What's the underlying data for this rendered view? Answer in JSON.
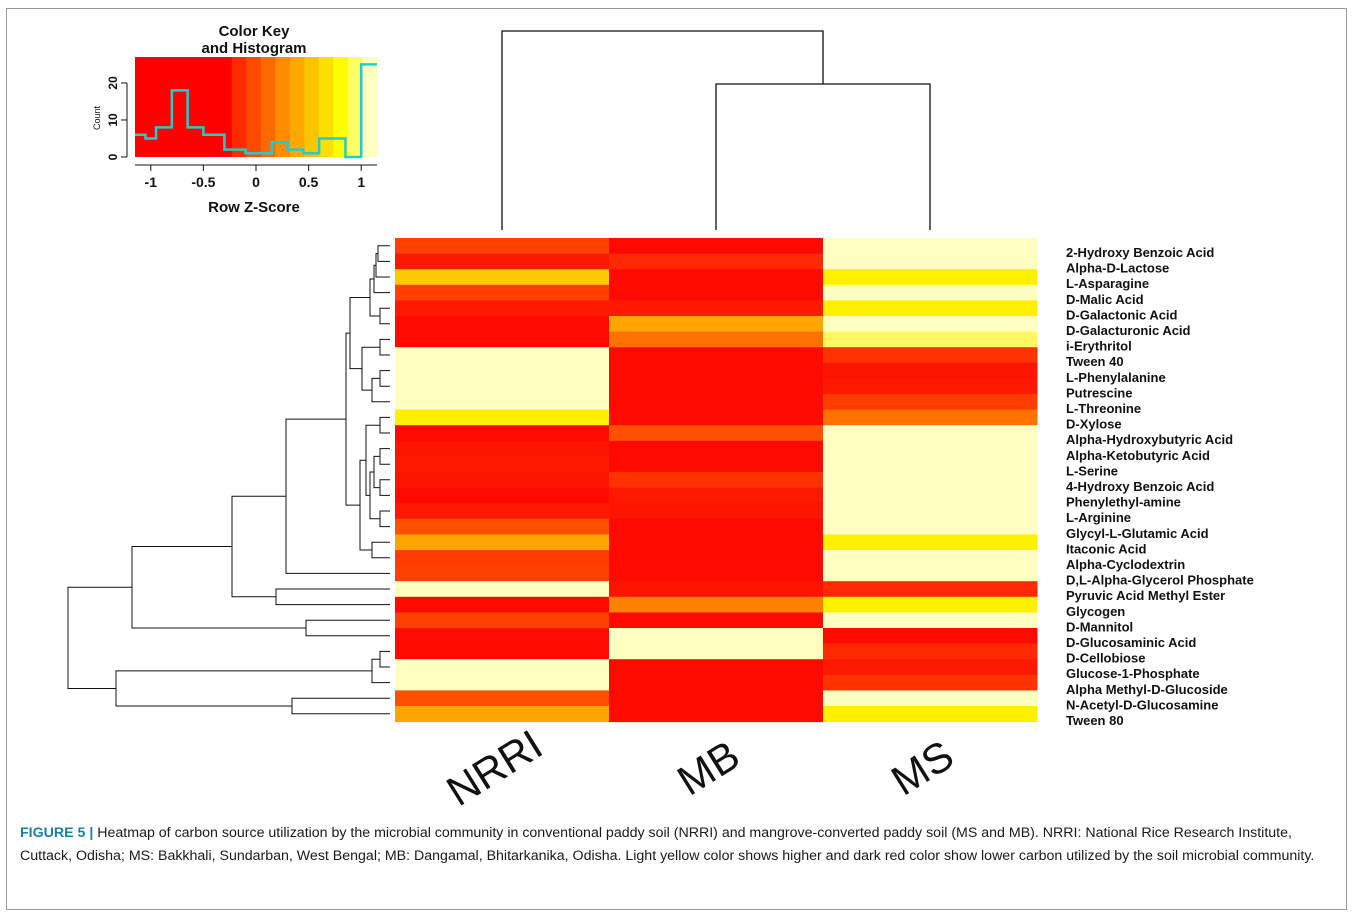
{
  "chart_data": {
    "type": "heatmap",
    "columns": [
      "NRRI",
      "MB",
      "MS"
    ],
    "rows": [
      "2-Hydroxy Benzoic Acid",
      "Alpha-D-Lactose",
      "L-Asparagine",
      "D-Malic Acid",
      "D-Galactonic Acid",
      "D-Galacturonic Acid",
      "i-Erythritol",
      "Tween 40",
      "L-Phenylalanine",
      "Putrescine",
      "L-Threonine",
      "D-Xylose",
      "Alpha-Hydroxybutyric Acid",
      "Alpha-Ketobutyric Acid",
      "L-Serine",
      "4-Hydroxy Benzoic Acid",
      "Phenylethyl-amine",
      "L-Arginine",
      "Glycyl-L-Glutamic Acid",
      "Itaconic Acid",
      "Alpha-Cyclodextrin",
      "D,L-Alpha-Glycerol Phosphate",
      "Pyruvic Acid Methyl Ester",
      "Glycogen",
      "D-Mannitol",
      "D-Glucosaminic Acid",
      "D-Cellobiose",
      "Glucose-1-Phosphate",
      "Alpha Methyl-D-Glucoside",
      "N-Acetyl-D-Glucosamine",
      "Tween 80"
    ],
    "values": [
      [
        -0.45,
        -1.0,
        1.0
      ],
      [
        -0.85,
        -0.7,
        1.0
      ],
      [
        0.4,
        -1.0,
        0.6
      ],
      [
        -0.45,
        -1.0,
        1.0
      ],
      [
        -0.85,
        -0.85,
        0.6
      ],
      [
        -1.0,
        0.2,
        1.0
      ],
      [
        -1.0,
        -0.1,
        0.8
      ],
      [
        1.0,
        -1.0,
        -0.6
      ],
      [
        1.0,
        -1.0,
        -0.9
      ],
      [
        1.0,
        -1.0,
        -0.85
      ],
      [
        1.0,
        -1.0,
        -0.5
      ],
      [
        0.6,
        -1.0,
        -0.1
      ],
      [
        -1.0,
        -0.3,
        1.0
      ],
      [
        -0.9,
        -1.0,
        1.0
      ],
      [
        -0.85,
        -1.0,
        1.0
      ],
      [
        -0.9,
        -0.6,
        1.0
      ],
      [
        -1.0,
        -0.85,
        1.0
      ],
      [
        -0.85,
        -0.9,
        1.0
      ],
      [
        -0.3,
        -1.0,
        1.0
      ],
      [
        0.2,
        -1.0,
        0.6
      ],
      [
        -0.5,
        -1.0,
        1.0
      ],
      [
        -0.45,
        -1.0,
        1.0
      ],
      [
        1.0,
        -0.9,
        -0.7
      ],
      [
        -1.0,
        0.0,
        0.6
      ],
      [
        -0.45,
        -1.0,
        1.0
      ],
      [
        -1.0,
        1.0,
        -1.0
      ],
      [
        -1.0,
        1.0,
        -0.7
      ],
      [
        1.0,
        -1.0,
        -0.85
      ],
      [
        1.0,
        -1.0,
        -0.6
      ],
      [
        -0.3,
        -1.0,
        1.0
      ],
      [
        0.2,
        -1.0,
        0.6
      ]
    ],
    "color_key": {
      "title_line1": "Color Key",
      "title_line2": "and Histogram",
      "xlabel": "Row Z-Score",
      "ylabel": "Count",
      "xticks": [
        "-1",
        "-0.5",
        "0",
        "0.5",
        "1"
      ],
      "yticks": [
        "0",
        "10",
        "20"
      ],
      "xlim": [
        -1.15,
        1.15
      ],
      "ylim": [
        0,
        27
      ],
      "histogram": [
        [
          -1.15,
          6
        ],
        [
          -1.05,
          5
        ],
        [
          -0.95,
          8
        ],
        [
          -0.8,
          18
        ],
        [
          -0.65,
          8
        ],
        [
          -0.5,
          6
        ],
        [
          -0.3,
          2
        ],
        [
          -0.1,
          1
        ],
        [
          0.15,
          4
        ],
        [
          0.3,
          2
        ],
        [
          0.45,
          1
        ],
        [
          0.6,
          5
        ],
        [
          0.85,
          0
        ],
        [
          1.0,
          25
        ]
      ],
      "colors": [
        "#ff0000",
        "#ff2a00",
        "#ff4b00",
        "#ff6a00",
        "#ff8c00",
        "#ffa800",
        "#ffc400",
        "#ffe000",
        "#ffff00",
        "#ffff66",
        "#ffffc0"
      ]
    },
    "colors": {
      "low": "#ff1a00",
      "mid": "#ff9a00",
      "high": "#ffffc0",
      "histogram_line": "#22cccc"
    }
  },
  "caption": {
    "figure_label": "FIGURE 5 |",
    "text": " Heatmap of carbon source utilization by the microbial community in conventional paddy soil (NRRI) and mangrove-converted paddy soil (MS and MB). NRRI: National Rice Research Institute, Cuttack, Odisha; MS: Bakkhali, Sundarban, West Bengal; MB: Dangamal, Bhitarkanika, Odisha. Light yellow color shows higher and dark red color show lower carbon utilized by the soil microbial community."
  }
}
